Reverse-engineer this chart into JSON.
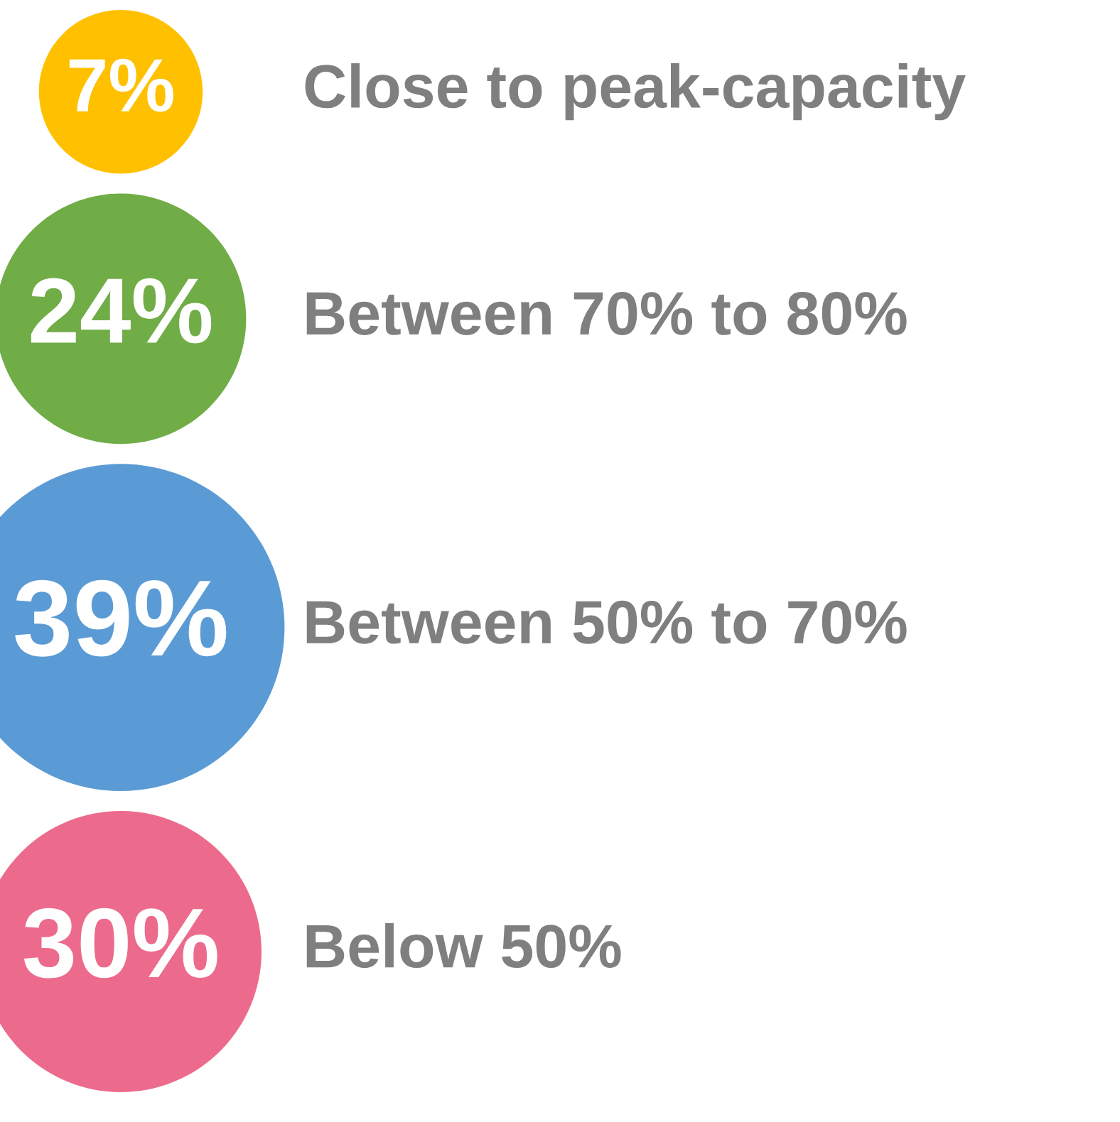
{
  "chart_data": {
    "type": "other",
    "categories": [
      "Close to peak-capacity",
      "Between 70% to 80%",
      "Between 50% to 70%",
      "Below 50%"
    ],
    "values": [
      7,
      24,
      39,
      30
    ],
    "value_labels": [
      "7%",
      "24%",
      "39%",
      "30%"
    ],
    "colors": [
      "#ffc000",
      "#70ad47",
      "#5b9bd5",
      "#ec6b8c"
    ]
  }
}
